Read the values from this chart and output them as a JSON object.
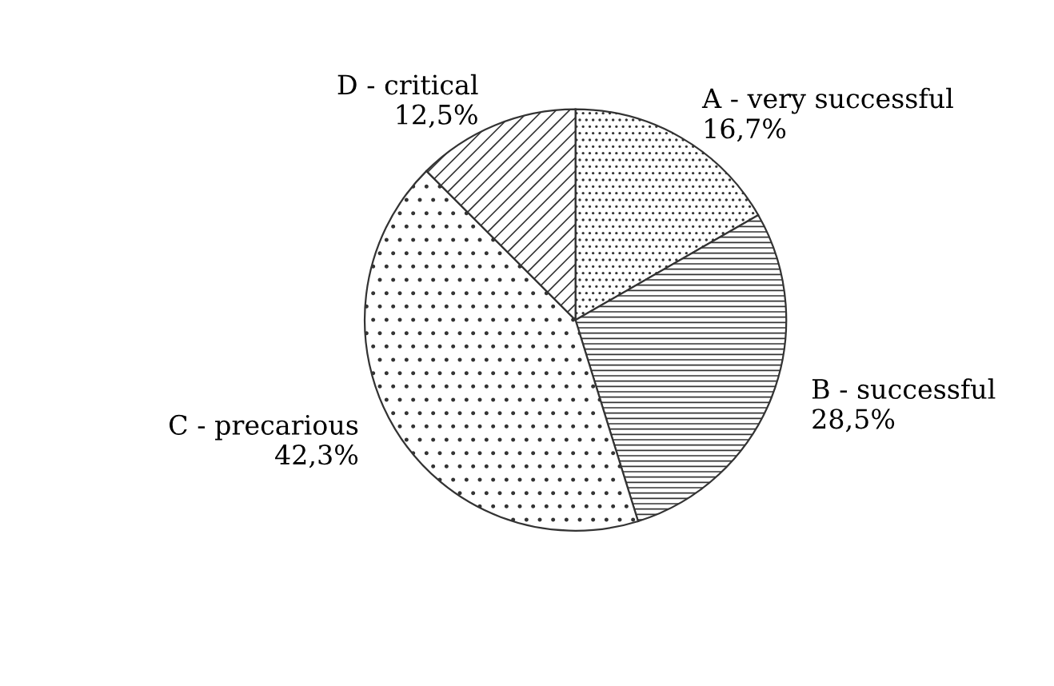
{
  "chart_data": {
    "type": "pie",
    "categories": [
      "A - very successful",
      "B - successful",
      "C - precarious",
      "D - critical"
    ],
    "values": [
      16.7,
      28.5,
      42.3,
      12.5
    ],
    "value_labels": [
      "16,7%",
      "28,5%",
      "42,3%",
      "12,5%"
    ],
    "colors": [
      "#333333",
      "#333333",
      "#333333",
      "#333333"
    ],
    "legend": false
  }
}
